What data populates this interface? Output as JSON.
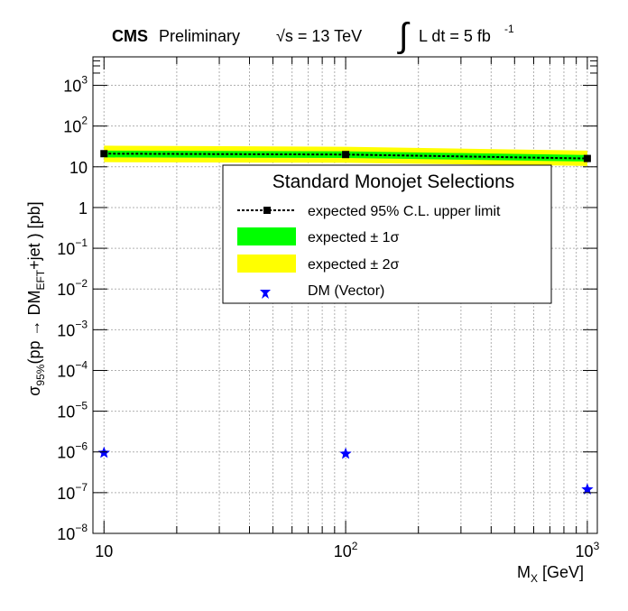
{
  "header": {
    "experiment": "CMS",
    "status": "Preliminary",
    "energy_prefix": "√s = 13 TeV",
    "lumi_integral": "∫",
    "lumi_text": "L dt = 5 fb",
    "lumi_exp": "-1"
  },
  "legend": {
    "title": "Standard Monojet Selections",
    "title_color": "#ff0000",
    "entries": [
      {
        "label": "expected 95% C.L. upper limit",
        "key": "expected"
      },
      {
        "label": "expected ± 1σ",
        "key": "band1"
      },
      {
        "label": "expected ± 2σ",
        "key": "band2"
      },
      {
        "label": "DM (Vector)",
        "key": "dm"
      }
    ]
  },
  "axes": {
    "x_main": "M",
    "x_sub": "X",
    "x_unit": " [GeV]",
    "y_sigma": "σ",
    "y_sub1": "95%",
    "y_mid": "(pp → DM",
    "y_sub2": "EFT",
    "y_tail": "+jet ) [pb]"
  },
  "colors": {
    "band_1sigma": "#00ff00",
    "band_2sigma": "#ffff00",
    "dm_marker": "#0000ff",
    "expected_line": "#000000"
  },
  "chart_data": {
    "type": "line",
    "x_scale": "log",
    "y_scale": "log",
    "xlim": [
      9,
      1100
    ],
    "ylim": [
      1e-08,
      5000
    ],
    "x_ticks": [
      {
        "value": 10,
        "label": "10",
        "exp": ""
      },
      {
        "value": 100,
        "label": "10",
        "exp": "2"
      },
      {
        "value": 1000,
        "label": "10",
        "exp": "3"
      }
    ],
    "y_ticks": [
      {
        "value": 1e-08,
        "label": "10",
        "exp": "−8"
      },
      {
        "value": 1e-07,
        "label": "10",
        "exp": "−7"
      },
      {
        "value": 1e-06,
        "label": "10",
        "exp": "−6"
      },
      {
        "value": 1e-05,
        "label": "10",
        "exp": "−5"
      },
      {
        "value": 0.0001,
        "label": "10",
        "exp": "−4"
      },
      {
        "value": 0.001,
        "label": "10",
        "exp": "−3"
      },
      {
        "value": 0.01,
        "label": "10",
        "exp": "−2"
      },
      {
        "value": 0.1,
        "label": "10",
        "exp": "−1"
      },
      {
        "value": 1,
        "label": "1",
        "exp": ""
      },
      {
        "value": 10,
        "label": "10",
        "exp": ""
      },
      {
        "value": 100,
        "label": "10",
        "exp": "2"
      },
      {
        "value": 1000,
        "label": "10",
        "exp": "3"
      }
    ],
    "grid": true,
    "legend_position": "center-right",
    "series": [
      {
        "name": "expected 95% C.L. upper limit",
        "x": [
          10,
          100,
          1000
        ],
        "y": [
          21,
          20,
          16
        ]
      },
      {
        "name": "expected ± 1σ",
        "x": [
          10,
          100,
          1000
        ],
        "low": [
          17,
          16.5,
          13.5
        ],
        "high": [
          25,
          24,
          19.5
        ]
      },
      {
        "name": "expected ± 2σ",
        "x": [
          10,
          100,
          1000
        ],
        "low": [
          13,
          12.5,
          10.5
        ],
        "high": [
          33,
          31,
          25
        ]
      },
      {
        "name": "DM (Vector)",
        "x": [
          10,
          100,
          1000
        ],
        "y": [
          9.5e-07,
          9e-07,
          1.2e-07
        ]
      }
    ]
  }
}
